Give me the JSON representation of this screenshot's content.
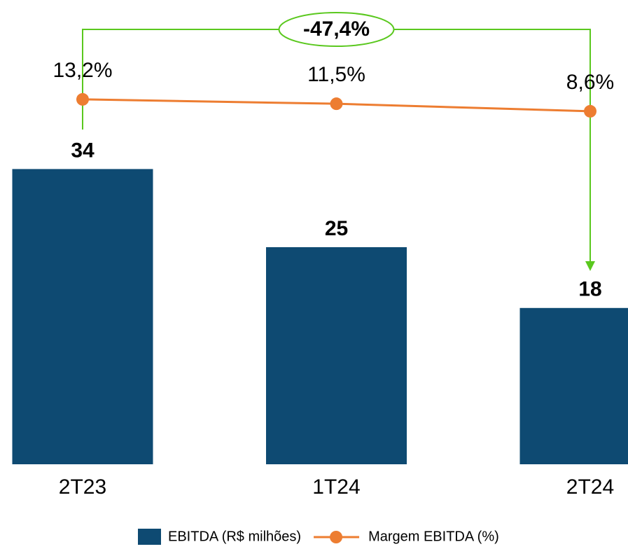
{
  "chart_data": {
    "type": "bar-line",
    "categories": [
      "2T23",
      "1T24",
      "2T24"
    ],
    "series": [
      {
        "name": "EBITDA (R$ milhões)",
        "type": "bar",
        "color": "#0e4a72",
        "values": [
          34,
          25,
          18
        ]
      },
      {
        "name": "Margem EBITDA (%)",
        "type": "line",
        "axis": "y2",
        "color": "#ed7d31",
        "values": [
          13.2,
          11.5,
          8.6
        ],
        "value_labels": [
          "13,2%",
          "11,5%",
          "8,6%"
        ]
      }
    ],
    "ylim": [
      0,
      50
    ],
    "y2lim": [
      -128,
      40
    ],
    "annotation": "-47,4%",
    "annotation_color": "#5ac81e",
    "legend": "bottom"
  }
}
